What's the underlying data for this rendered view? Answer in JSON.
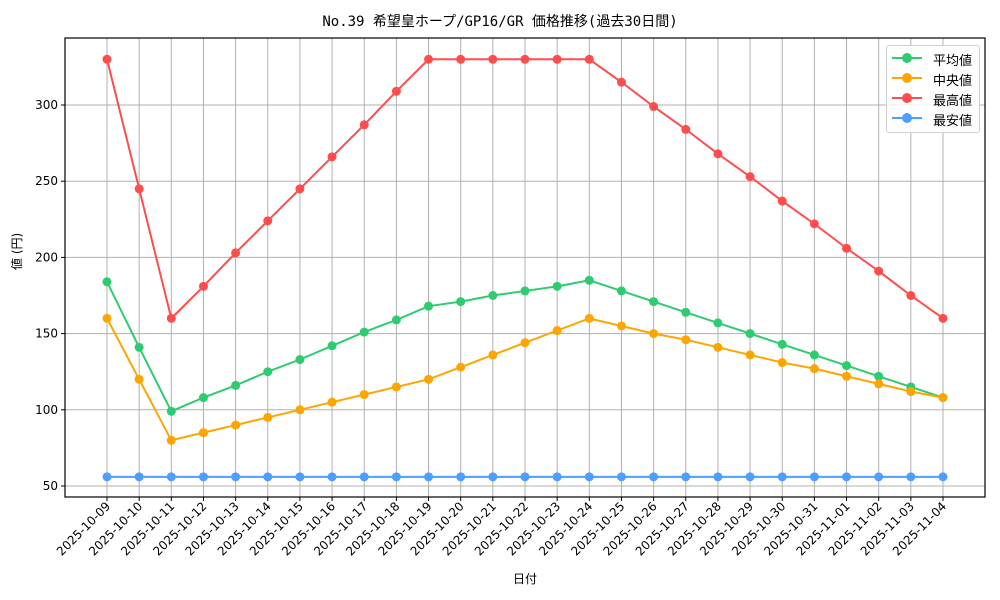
{
  "chart_data": {
    "type": "line",
    "title": "No.39 希望皇ホープ/GP16/GR 価格推移(過去30日間)",
    "xlabel": "日付",
    "ylabel": "値 (円)",
    "ylim": [
      42,
      342
    ],
    "yticks": [
      50,
      100,
      150,
      200,
      250,
      300
    ],
    "grid": true,
    "legend_position": "upper right",
    "categories": [
      "2025-10-09",
      "2025-10-10",
      "2025-10-11",
      "2025-10-12",
      "2025-10-13",
      "2025-10-14",
      "2025-10-15",
      "2025-10-16",
      "2025-10-17",
      "2025-10-18",
      "2025-10-19",
      "2025-10-20",
      "2025-10-21",
      "2025-10-22",
      "2025-10-23",
      "2025-10-24",
      "2025-10-25",
      "2025-10-26",
      "2025-10-27",
      "2025-10-28",
      "2025-10-29",
      "2025-10-30",
      "2025-10-31",
      "2025-11-01",
      "2025-11-02",
      "2025-11-03",
      "2025-11-04"
    ],
    "series": [
      {
        "name": "平均値",
        "color": "#2ecc71",
        "values": [
          184,
          141,
          99,
          108,
          116,
          125,
          133,
          142,
          151,
          159,
          168,
          171,
          175,
          178,
          181,
          185,
          178,
          171,
          164,
          157,
          150,
          143,
          136,
          129,
          122,
          115,
          108
        ]
      },
      {
        "name": "中央値",
        "color": "#ffa500",
        "values": [
          160,
          120,
          80,
          85,
          90,
          95,
          100,
          105,
          110,
          115,
          120,
          128,
          136,
          144,
          152,
          160,
          155,
          150,
          146,
          141,
          136,
          131,
          127,
          122,
          117,
          112,
          108
        ]
      },
      {
        "name": "最高値",
        "color": "#ff4d4d",
        "values": [
          330,
          245,
          160,
          181,
          203,
          224,
          245,
          266,
          287,
          309,
          330,
          330,
          330,
          330,
          330,
          330,
          315,
          299,
          284,
          268,
          253,
          237,
          222,
          206,
          191,
          175,
          160
        ]
      },
      {
        "name": "最安値",
        "color": "#4d9fff",
        "values": [
          56,
          56,
          56,
          56,
          56,
          56,
          56,
          56,
          56,
          56,
          56,
          56,
          56,
          56,
          56,
          56,
          56,
          56,
          56,
          56,
          56,
          56,
          56,
          56,
          56,
          56,
          56
        ]
      }
    ]
  }
}
